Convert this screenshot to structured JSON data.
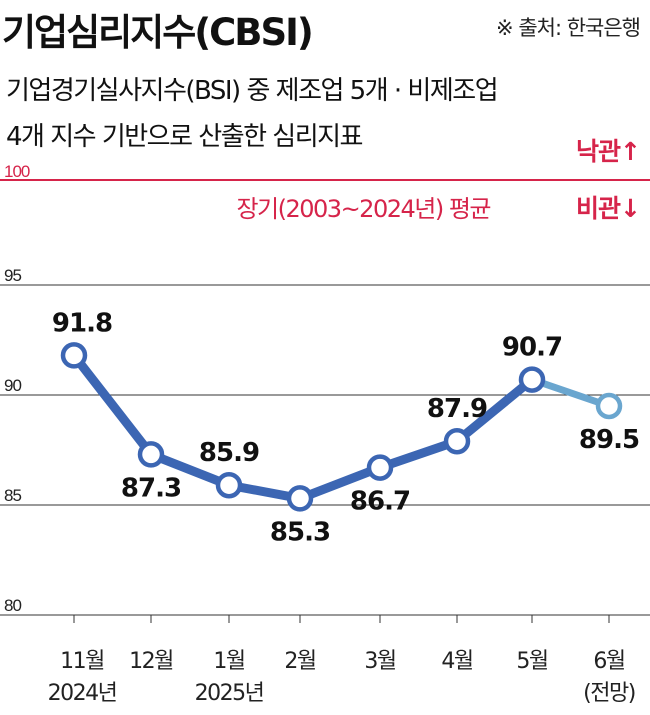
{
  "header": {
    "title": "기업심리지수(CBSI)",
    "source": "※ 출처: 한국은행",
    "subtitle_lines": [
      "기업경기실사지수(BSI) 중 제조업 5개 · 비제조업",
      "4개 지수 기반으로 산출한 심리지표"
    ]
  },
  "reference_line": {
    "value": 100,
    "label": "장기(2003~2024년) 평균",
    "optimism_label": "낙관↑",
    "pessimism_label": "비관↓",
    "color": "#d6244a"
  },
  "chart_data": {
    "type": "line",
    "categories": [
      [
        "11월",
        "2024년"
      ],
      [
        "12월",
        ""
      ],
      [
        "1월",
        "2025년"
      ],
      [
        "2월",
        ""
      ],
      [
        "3월",
        ""
      ],
      [
        "4월",
        ""
      ],
      [
        "5월",
        ""
      ],
      [
        "6월",
        "(전망)"
      ]
    ],
    "values": [
      91.8,
      87.3,
      85.9,
      85.3,
      86.7,
      87.9,
      90.7,
      89.5
    ],
    "value_labels": [
      "91.8",
      "87.3",
      "85.9",
      "85.3",
      "86.7",
      "87.9",
      "90.7",
      "89.5"
    ],
    "forecast_from_index": 6,
    "y_ticks": [
      "100",
      "95",
      "90",
      "85",
      "80"
    ],
    "ylim": [
      80,
      100
    ],
    "grid": false,
    "colors": {
      "actual": "#3c66b3",
      "forecast": "#6aa6cf"
    }
  }
}
